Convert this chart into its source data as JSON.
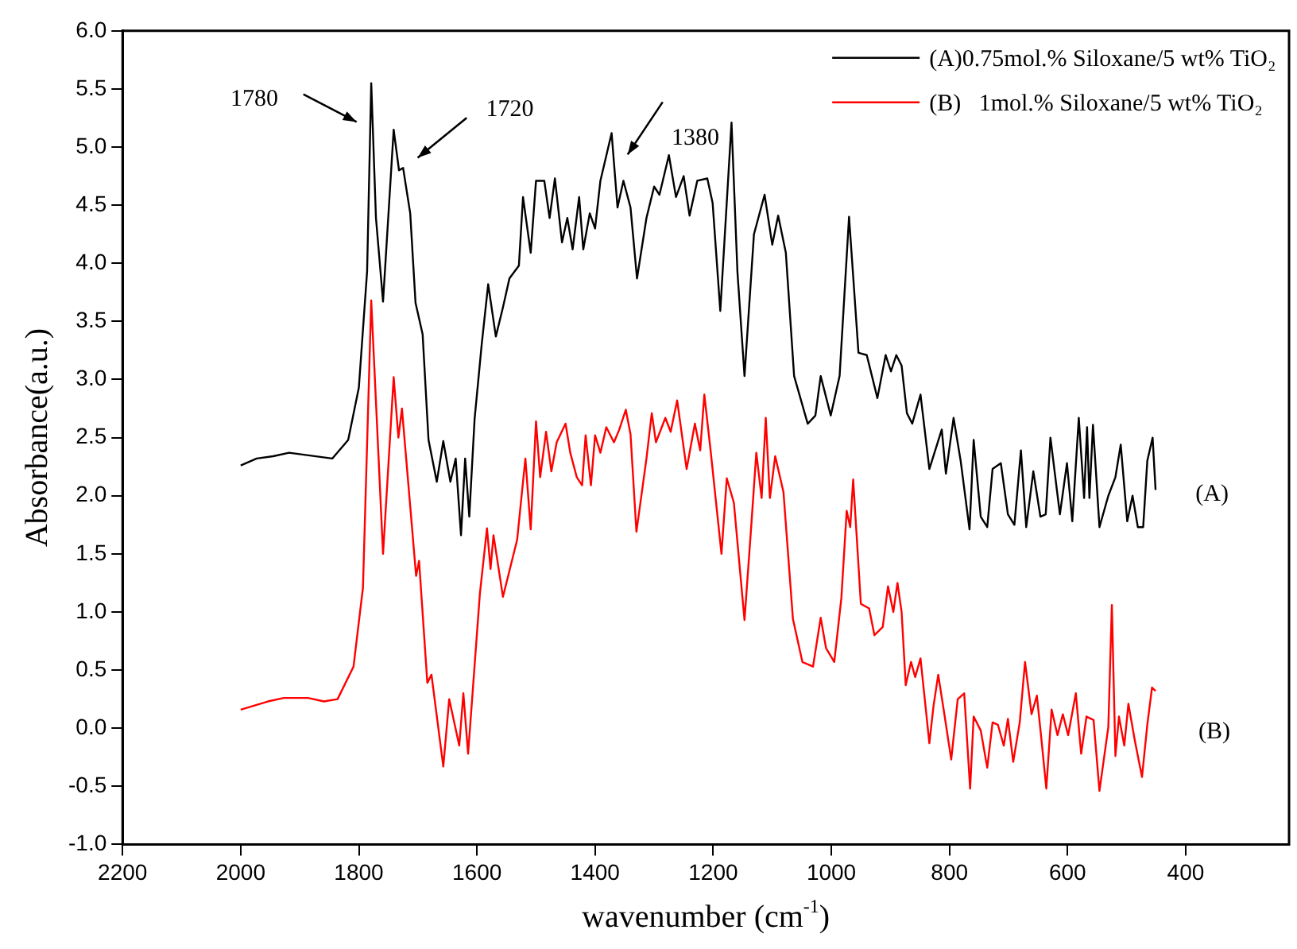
{
  "chart_data": {
    "type": "line",
    "xlabel": "wavenumber (cm$^{-1}$)",
    "ylabel": "Absorbance(a.u.)",
    "xlim": [
      2200,
      225
    ],
    "xticks": [
      2200,
      2000,
      1800,
      1600,
      1400,
      1200,
      1000,
      800,
      600,
      400
    ],
    "ylim": [
      -1,
      6
    ],
    "yticks": [
      {
        "value": -1,
        "label": "-1.0"
      },
      {
        "value": -0.5,
        "label": "-0.5"
      },
      {
        "value": 0,
        "label": "0.0"
      },
      {
        "value": 0.5,
        "label": "0.5"
      },
      {
        "value": 1,
        "label": "1.0"
      },
      {
        "value": 1.5,
        "label": "1.5"
      },
      {
        "value": 2,
        "label": "2.0"
      },
      {
        "value": 2.5,
        "label": "2.5"
      },
      {
        "value": 3,
        "label": "3.0"
      },
      {
        "value": 3.5,
        "label": "3.5"
      },
      {
        "value": 4,
        "label": "4.0"
      },
      {
        "value": 4.5,
        "label": "4.5"
      },
      {
        "value": 5,
        "label": "5.0"
      },
      {
        "value": 5.5,
        "label": "5.5"
      },
      {
        "value": 6,
        "label": "6.0"
      }
    ],
    "grid": false,
    "legend": "top right",
    "marker": "none",
    "line_style": "solid",
    "annotations": [
      "1780",
      "1720",
      "1380",
      "(A)",
      "(B)"
    ],
    "series": [
      {
        "name": "(A)0.75mol.% Siloxane/5 wt% TiO₂",
        "color": "#000000",
        "x": [
          2000,
          1973,
          1945,
          1918,
          1845,
          1818,
          1800,
          1786,
          1779,
          1771,
          1759,
          1741,
          1732,
          1725,
          1713,
          1704,
          1692,
          1682,
          1668,
          1657,
          1645,
          1636,
          1627,
          1620,
          1613,
          1604,
          1592,
          1581,
          1568,
          1556,
          1545,
          1529,
          1522,
          1509,
          1500,
          1486,
          1477,
          1468,
          1456,
          1447,
          1438,
          1427,
          1420,
          1409,
          1400,
          1391,
          1372,
          1362,
          1352,
          1340,
          1329,
          1313,
          1300,
          1291,
          1275,
          1263,
          1250,
          1240,
          1227,
          1210,
          1201,
          1188,
          1169,
          1159,
          1147,
          1131,
          1113,
          1100,
          1090,
          1077,
          1063,
          1040,
          1027,
          1018,
          1001,
          986,
          970,
          954,
          940,
          922,
          908,
          899,
          890,
          881,
          872,
          863,
          849,
          834,
          813,
          806,
          793,
          781,
          766,
          759,
          747,
          736,
          727,
          713,
          701,
          690,
          679,
          670,
          658,
          646,
          637,
          629,
          613,
          601,
          592,
          581,
          572,
          567,
          563,
          557,
          546,
          531,
          519,
          510,
          499,
          490,
          481,
          472,
          465,
          456,
          451
        ],
        "values": [
          2.26,
          2.32,
          2.34,
          2.37,
          2.32,
          2.48,
          2.93,
          3.93,
          5.55,
          4.39,
          3.67,
          5.15,
          4.8,
          4.82,
          4.43,
          3.66,
          3.39,
          2.48,
          2.12,
          2.47,
          2.12,
          2.32,
          1.66,
          2.32,
          1.82,
          2.66,
          3.3,
          3.82,
          3.37,
          3.62,
          3.87,
          3.98,
          4.57,
          4.09,
          4.71,
          4.71,
          4.39,
          4.73,
          4.18,
          4.39,
          4.12,
          4.57,
          4.12,
          4.43,
          4.3,
          4.71,
          5.12,
          4.48,
          4.71,
          4.48,
          3.87,
          4.39,
          4.66,
          4.59,
          4.93,
          4.57,
          4.75,
          4.41,
          4.71,
          4.73,
          4.52,
          3.59,
          5.21,
          3.93,
          3.03,
          4.25,
          4.59,
          4.16,
          4.41,
          4.09,
          3.03,
          2.62,
          2.69,
          3.03,
          2.69,
          3.03,
          4.4,
          3.23,
          3.21,
          2.84,
          3.21,
          3.07,
          3.21,
          3.12,
          2.71,
          2.62,
          2.87,
          2.23,
          2.57,
          2.19,
          2.67,
          2.3,
          1.71,
          2.48,
          1.82,
          1.73,
          2.23,
          2.28,
          1.84,
          1.75,
          2.39,
          1.73,
          2.21,
          1.82,
          1.84,
          2.5,
          1.84,
          2.28,
          1.78,
          2.67,
          1.98,
          2.59,
          1.98,
          2.61,
          1.73,
          2.0,
          2.16,
          2.44,
          1.78,
          2.0,
          1.73,
          1.73,
          2.3,
          2.5,
          2.05
        ]
      },
      {
        "name": "(B)   1mol.% Siloxane/5 wt% TiO₂",
        "color": "#ff0000",
        "x": [
          2000,
          1954,
          1927,
          1886,
          1859,
          1836,
          1809,
          1793,
          1779,
          1759,
          1741,
          1733,
          1727,
          1715,
          1703,
          1698,
          1684,
          1677,
          1657,
          1647,
          1630,
          1623,
          1615,
          1595,
          1583,
          1577,
          1572,
          1556,
          1532,
          1518,
          1509,
          1500,
          1493,
          1483,
          1474,
          1465,
          1450,
          1442,
          1431,
          1422,
          1416,
          1407,
          1400,
          1391,
          1381,
          1368,
          1359,
          1348,
          1340,
          1330,
          1313,
          1304,
          1297,
          1281,
          1272,
          1261,
          1245,
          1231,
          1222,
          1215,
          1204,
          1186,
          1177,
          1165,
          1147,
          1136,
          1127,
          1118,
          1111,
          1104,
          1095,
          1081,
          1065,
          1049,
          1031,
          1018,
          1009,
          995,
          983,
          974,
          968,
          963,
          950,
          936,
          927,
          913,
          904,
          895,
          888,
          881,
          874,
          865,
          858,
          849,
          834,
          827,
          819,
          808,
          797,
          786,
          775,
          765,
          759,
          747,
          736,
          727,
          718,
          708,
          701,
          692,
          681,
          672,
          661,
          652,
          645,
          636,
          627,
          617,
          608,
          599,
          586,
          577,
          568,
          556,
          546,
          531,
          525,
          519,
          513,
          504,
          497,
          486,
          474,
          465,
          457,
          451
        ],
        "values": [
          0.16,
          0.23,
          0.26,
          0.26,
          0.23,
          0.25,
          0.53,
          1.21,
          3.68,
          1.5,
          3.02,
          2.5,
          2.75,
          2.03,
          1.31,
          1.44,
          0.39,
          0.46,
          -0.33,
          0.25,
          -0.15,
          0.3,
          -0.22,
          1.16,
          1.72,
          1.37,
          1.66,
          1.13,
          1.62,
          2.32,
          1.71,
          2.64,
          2.16,
          2.55,
          2.21,
          2.46,
          2.62,
          2.37,
          2.16,
          2.09,
          2.52,
          2.09,
          2.52,
          2.37,
          2.59,
          2.46,
          2.57,
          2.74,
          2.53,
          1.69,
          2.32,
          2.71,
          2.46,
          2.67,
          2.55,
          2.82,
          2.23,
          2.62,
          2.39,
          2.87,
          2.37,
          1.5,
          2.15,
          1.94,
          0.93,
          1.71,
          2.37,
          1.98,
          2.67,
          1.98,
          2.34,
          2.03,
          0.94,
          0.57,
          0.53,
          0.95,
          0.69,
          0.57,
          1.12,
          1.87,
          1.73,
          2.14,
          1.07,
          1.03,
          0.8,
          0.87,
          1.22,
          1.0,
          1.25,
          1.0,
          0.37,
          0.57,
          0.44,
          0.6,
          -0.13,
          0.19,
          0.46,
          0.1,
          -0.27,
          0.25,
          0.3,
          -0.52,
          0.1,
          -0.02,
          -0.34,
          0.05,
          0.03,
          -0.15,
          0.08,
          -0.29,
          0.05,
          0.57,
          0.12,
          0.28,
          -0.06,
          -0.52,
          0.16,
          -0.06,
          0.12,
          -0.06,
          0.3,
          -0.22,
          0.1,
          0.07,
          -0.54,
          0.01,
          1.06,
          -0.24,
          0.1,
          -0.15,
          0.21,
          -0.11,
          -0.42,
          0.03,
          0.35,
          0.32
        ]
      }
    ]
  }
}
